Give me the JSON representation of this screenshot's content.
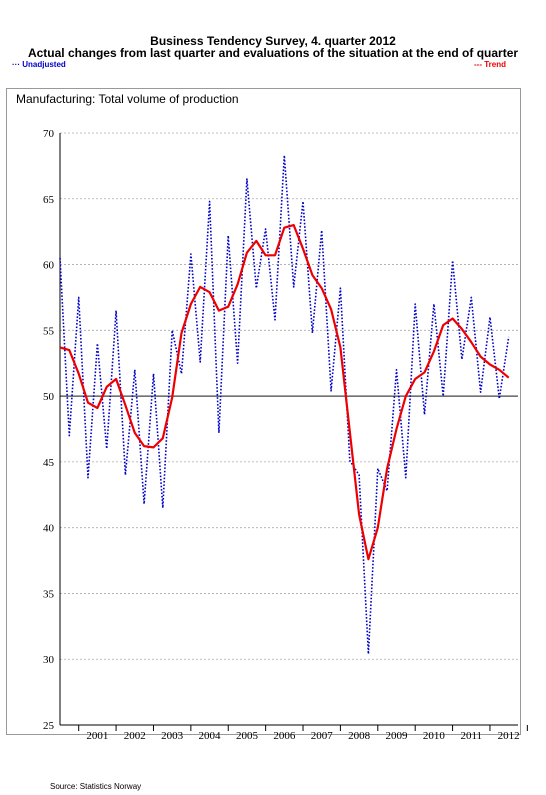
{
  "header": {
    "title": "Business Tendency Survey, 4. quarter 2012",
    "subtitle": "Actual changes from last quarter and evaluations of the situation at the end of quarter"
  },
  "legend": {
    "unadjusted": "Unadjusted",
    "trend": "Trend"
  },
  "panel": {
    "label": "Manufacturing:   Total volume of production"
  },
  "footer": {
    "source": "Source: Statistics Norway"
  },
  "colors": {
    "unadjusted": "#0000cc",
    "trend": "#ee0000",
    "reference": "#444444",
    "grid": "#aaaaaa"
  },
  "chart_data": {
    "type": "line",
    "title": "Manufacturing:   Total volume of production",
    "ylim": [
      25,
      70
    ],
    "yticks": [
      25,
      30,
      35,
      40,
      45,
      50,
      55,
      60,
      65,
      70
    ],
    "xlim": [
      2000.5,
      2012.75
    ],
    "xticks": [
      "2001",
      "2002",
      "2003",
      "2004",
      "2005",
      "2006",
      "2007",
      "2008",
      "2009",
      "2010",
      "2011",
      "2012"
    ],
    "grid": true,
    "reference_line": 50,
    "legend_placement": "top",
    "x_start": 2000.5,
    "x_step": 0.25,
    "series": [
      {
        "name": "Unadjusted",
        "style": "dotted",
        "values": [
          60.5,
          47.0,
          57.5,
          43.8,
          54.0,
          46.0,
          56.5,
          44.0,
          52.0,
          41.8,
          51.7,
          41.5,
          55.0,
          51.7,
          60.8,
          52.6,
          64.8,
          47.2,
          62.2,
          52.5,
          66.5,
          58.2,
          62.7,
          55.8,
          68.3,
          58.3,
          64.8,
          54.8,
          62.6,
          50.4,
          58.2,
          45.1,
          44.0,
          30.4,
          44.5,
          42.8,
          52.0,
          43.8,
          57.0,
          48.6,
          57.0,
          50.0,
          60.3,
          52.8,
          57.5,
          50.3,
          56.0,
          49.8,
          54.5
        ]
      },
      {
        "name": "Trend",
        "style": "solid",
        "values": [
          53.7,
          53.5,
          51.7,
          49.5,
          49.1,
          50.7,
          51.3,
          49.3,
          47.2,
          46.2,
          46.1,
          46.8,
          49.9,
          54.8,
          57.0,
          58.3,
          57.9,
          56.5,
          56.8,
          58.5,
          60.9,
          61.8,
          60.7,
          60.7,
          62.8,
          63.0,
          61.2,
          59.2,
          58.2,
          56.6,
          53.7,
          47.3,
          41.0,
          37.6,
          40.0,
          44.5,
          47.5,
          50.0,
          51.3,
          51.8,
          53.4,
          55.4,
          55.9,
          55.1,
          54.1,
          53.0,
          52.4,
          52.0,
          51.4
        ]
      }
    ]
  }
}
